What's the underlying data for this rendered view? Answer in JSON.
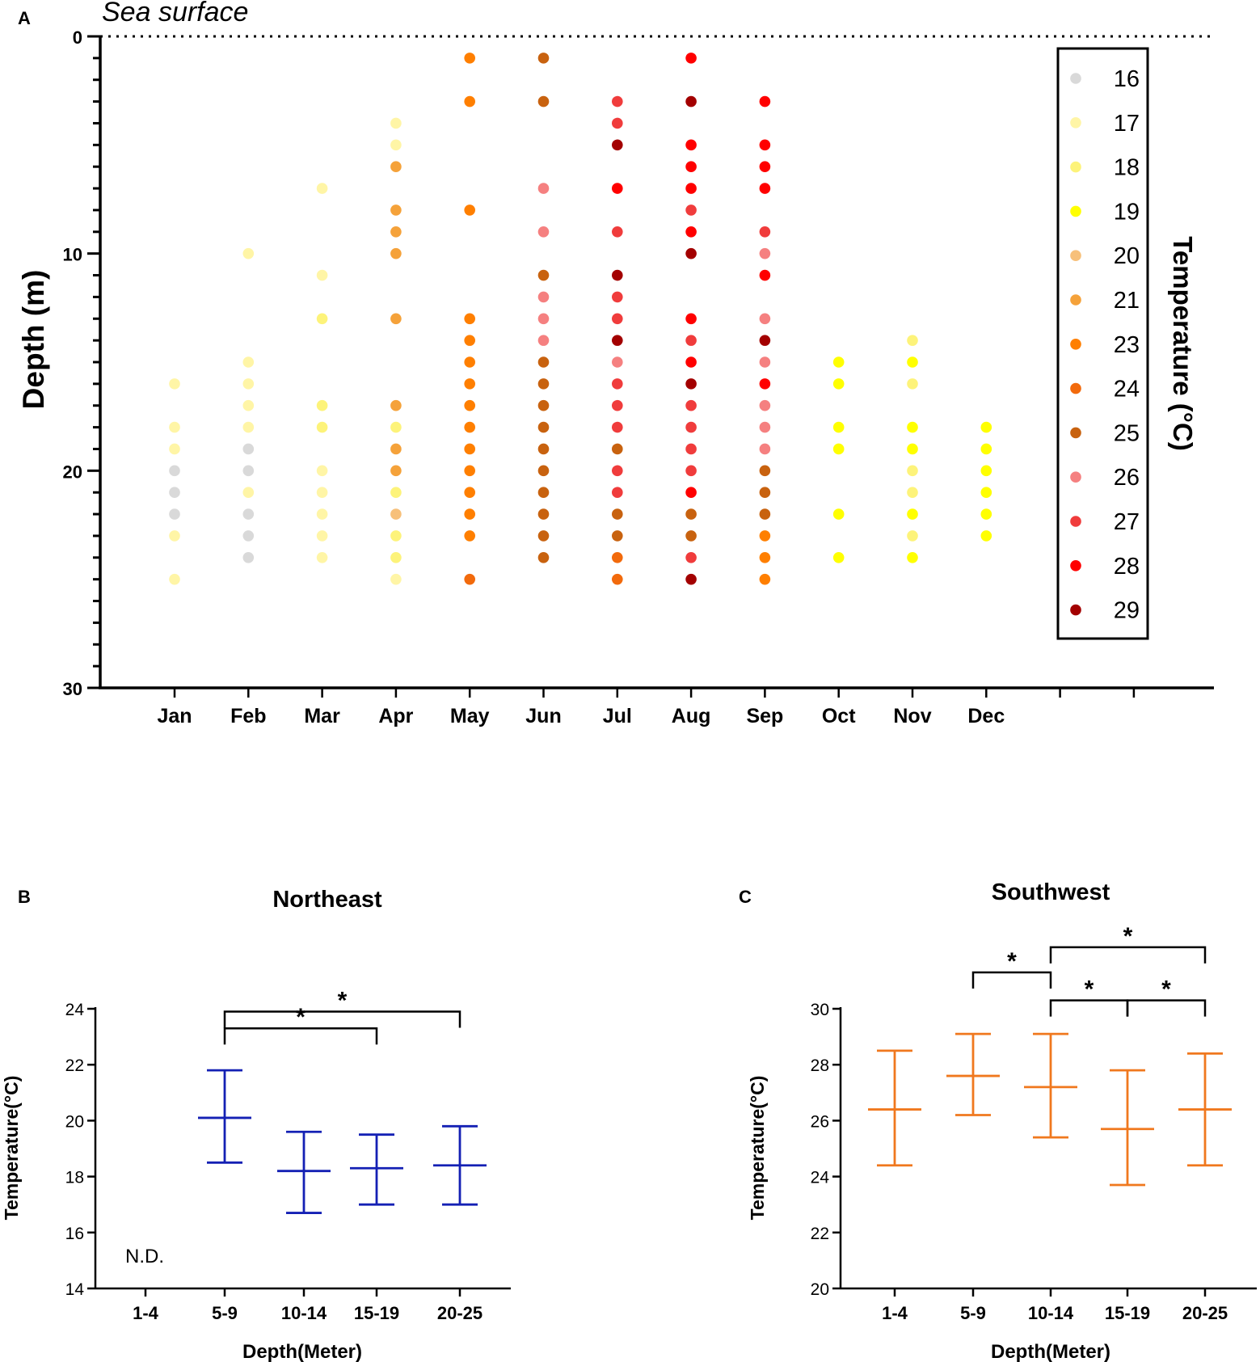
{
  "chart_data": [
    {
      "panel": "A",
      "type": "scatter",
      "annotation": "Sea surface",
      "ylabel": "Depth (m)",
      "ylim": [
        0,
        30
      ],
      "yticks": [
        0,
        10,
        20,
        30
      ],
      "y_inverted": true,
      "categories": [
        "Jan",
        "Feb",
        "Mar",
        "Apr",
        "May",
        "Jun",
        "Jul",
        "Aug",
        "Sep",
        "Oct",
        "Nov",
        "Dec"
      ],
      "legend_title": "Temperature (°C)",
      "legend": [
        {
          "temp": "16",
          "color": "#d9d9d9"
        },
        {
          "temp": "17",
          "color": "#fff5a6"
        },
        {
          "temp": "18",
          "color": "#fdf37a"
        },
        {
          "temp": "19",
          "color": "#ffff00"
        },
        {
          "temp": "20",
          "color": "#f7c07a"
        },
        {
          "temp": "21",
          "color": "#f5a23a"
        },
        {
          "temp": "23",
          "color": "#ff7f00"
        },
        {
          "temp": "24",
          "color": "#f26a0c"
        },
        {
          "temp": "25",
          "color": "#c8620f"
        },
        {
          "temp": "26",
          "color": "#f58080"
        },
        {
          "temp": "27",
          "color": "#f03c3c"
        },
        {
          "temp": "28",
          "color": "#ff0000"
        },
        {
          "temp": "29",
          "color": "#a30000"
        }
      ],
      "points": [
        {
          "month": "Jan",
          "depth": 16,
          "temp": "17"
        },
        {
          "month": "Jan",
          "depth": 18,
          "temp": "17"
        },
        {
          "month": "Jan",
          "depth": 19,
          "temp": "17"
        },
        {
          "month": "Jan",
          "depth": 20,
          "temp": "16"
        },
        {
          "month": "Jan",
          "depth": 21,
          "temp": "16"
        },
        {
          "month": "Jan",
          "depth": 22,
          "temp": "16"
        },
        {
          "month": "Jan",
          "depth": 23,
          "temp": "17"
        },
        {
          "month": "Jan",
          "depth": 25,
          "temp": "17"
        },
        {
          "month": "Feb",
          "depth": 10,
          "temp": "17"
        },
        {
          "month": "Feb",
          "depth": 15,
          "temp": "17"
        },
        {
          "month": "Feb",
          "depth": 16,
          "temp": "17"
        },
        {
          "month": "Feb",
          "depth": 17,
          "temp": "17"
        },
        {
          "month": "Feb",
          "depth": 18,
          "temp": "17"
        },
        {
          "month": "Feb",
          "depth": 19,
          "temp": "16"
        },
        {
          "month": "Feb",
          "depth": 20,
          "temp": "16"
        },
        {
          "month": "Feb",
          "depth": 21,
          "temp": "17"
        },
        {
          "month": "Feb",
          "depth": 22,
          "temp": "16"
        },
        {
          "month": "Feb",
          "depth": 23,
          "temp": "16"
        },
        {
          "month": "Feb",
          "depth": 24,
          "temp": "16"
        },
        {
          "month": "Mar",
          "depth": 7,
          "temp": "17"
        },
        {
          "month": "Mar",
          "depth": 11,
          "temp": "17"
        },
        {
          "month": "Mar",
          "depth": 13,
          "temp": "18"
        },
        {
          "month": "Mar",
          "depth": 17,
          "temp": "18"
        },
        {
          "month": "Mar",
          "depth": 18,
          "temp": "18"
        },
        {
          "month": "Mar",
          "depth": 20,
          "temp": "17"
        },
        {
          "month": "Mar",
          "depth": 21,
          "temp": "17"
        },
        {
          "month": "Mar",
          "depth": 22,
          "temp": "17"
        },
        {
          "month": "Mar",
          "depth": 23,
          "temp": "17"
        },
        {
          "month": "Mar",
          "depth": 24,
          "temp": "17"
        },
        {
          "month": "Apr",
          "depth": 4,
          "temp": "17"
        },
        {
          "month": "Apr",
          "depth": 5,
          "temp": "17"
        },
        {
          "month": "Apr",
          "depth": 6,
          "temp": "21"
        },
        {
          "month": "Apr",
          "depth": 8,
          "temp": "21"
        },
        {
          "month": "Apr",
          "depth": 9,
          "temp": "21"
        },
        {
          "month": "Apr",
          "depth": 10,
          "temp": "21"
        },
        {
          "month": "Apr",
          "depth": 13,
          "temp": "21"
        },
        {
          "month": "Apr",
          "depth": 17,
          "temp": "21"
        },
        {
          "month": "Apr",
          "depth": 18,
          "temp": "18"
        },
        {
          "month": "Apr",
          "depth": 19,
          "temp": "21"
        },
        {
          "month": "Apr",
          "depth": 20,
          "temp": "21"
        },
        {
          "month": "Apr",
          "depth": 21,
          "temp": "18"
        },
        {
          "month": "Apr",
          "depth": 22,
          "temp": "20"
        },
        {
          "month": "Apr",
          "depth": 23,
          "temp": "18"
        },
        {
          "month": "Apr",
          "depth": 24,
          "temp": "18"
        },
        {
          "month": "Apr",
          "depth": 25,
          "temp": "17"
        },
        {
          "month": "May",
          "depth": 1,
          "temp": "23"
        },
        {
          "month": "May",
          "depth": 3,
          "temp": "23"
        },
        {
          "month": "May",
          "depth": 8,
          "temp": "23"
        },
        {
          "month": "May",
          "depth": 13,
          "temp": "23"
        },
        {
          "month": "May",
          "depth": 14,
          "temp": "23"
        },
        {
          "month": "May",
          "depth": 15,
          "temp": "23"
        },
        {
          "month": "May",
          "depth": 16,
          "temp": "23"
        },
        {
          "month": "May",
          "depth": 17,
          "temp": "23"
        },
        {
          "month": "May",
          "depth": 18,
          "temp": "23"
        },
        {
          "month": "May",
          "depth": 19,
          "temp": "23"
        },
        {
          "month": "May",
          "depth": 20,
          "temp": "23"
        },
        {
          "month": "May",
          "depth": 21,
          "temp": "23"
        },
        {
          "month": "May",
          "depth": 22,
          "temp": "23"
        },
        {
          "month": "May",
          "depth": 23,
          "temp": "23"
        },
        {
          "month": "May",
          "depth": 25,
          "temp": "24"
        },
        {
          "month": "Jun",
          "depth": 1,
          "temp": "25"
        },
        {
          "month": "Jun",
          "depth": 3,
          "temp": "25"
        },
        {
          "month": "Jun",
          "depth": 7,
          "temp": "26"
        },
        {
          "month": "Jun",
          "depth": 9,
          "temp": "26"
        },
        {
          "month": "Jun",
          "depth": 11,
          "temp": "25"
        },
        {
          "month": "Jun",
          "depth": 12,
          "temp": "26"
        },
        {
          "month": "Jun",
          "depth": 13,
          "temp": "26"
        },
        {
          "month": "Jun",
          "depth": 14,
          "temp": "26"
        },
        {
          "month": "Jun",
          "depth": 15,
          "temp": "25"
        },
        {
          "month": "Jun",
          "depth": 16,
          "temp": "25"
        },
        {
          "month": "Jun",
          "depth": 17,
          "temp": "25"
        },
        {
          "month": "Jun",
          "depth": 18,
          "temp": "25"
        },
        {
          "month": "Jun",
          "depth": 19,
          "temp": "25"
        },
        {
          "month": "Jun",
          "depth": 20,
          "temp": "25"
        },
        {
          "month": "Jun",
          "depth": 21,
          "temp": "25"
        },
        {
          "month": "Jun",
          "depth": 22,
          "temp": "25"
        },
        {
          "month": "Jun",
          "depth": 23,
          "temp": "25"
        },
        {
          "month": "Jun",
          "depth": 24,
          "temp": "25"
        },
        {
          "month": "Jul",
          "depth": 3,
          "temp": "27"
        },
        {
          "month": "Jul",
          "depth": 4,
          "temp": "27"
        },
        {
          "month": "Jul",
          "depth": 5,
          "temp": "29"
        },
        {
          "month": "Jul",
          "depth": 7,
          "temp": "28"
        },
        {
          "month": "Jul",
          "depth": 9,
          "temp": "27"
        },
        {
          "month": "Jul",
          "depth": 11,
          "temp": "29"
        },
        {
          "month": "Jul",
          "depth": 12,
          "temp": "27"
        },
        {
          "month": "Jul",
          "depth": 13,
          "temp": "27"
        },
        {
          "month": "Jul",
          "depth": 14,
          "temp": "29"
        },
        {
          "month": "Jul",
          "depth": 15,
          "temp": "26"
        },
        {
          "month": "Jul",
          "depth": 16,
          "temp": "27"
        },
        {
          "month": "Jul",
          "depth": 17,
          "temp": "27"
        },
        {
          "month": "Jul",
          "depth": 18,
          "temp": "27"
        },
        {
          "month": "Jul",
          "depth": 19,
          "temp": "25"
        },
        {
          "month": "Jul",
          "depth": 20,
          "temp": "27"
        },
        {
          "month": "Jul",
          "depth": 21,
          "temp": "27"
        },
        {
          "month": "Jul",
          "depth": 22,
          "temp": "25"
        },
        {
          "month": "Jul",
          "depth": 23,
          "temp": "25"
        },
        {
          "month": "Jul",
          "depth": 24,
          "temp": "24"
        },
        {
          "month": "Jul",
          "depth": 25,
          "temp": "24"
        },
        {
          "month": "Aug",
          "depth": 1,
          "temp": "28"
        },
        {
          "month": "Aug",
          "depth": 3,
          "temp": "29"
        },
        {
          "month": "Aug",
          "depth": 5,
          "temp": "28"
        },
        {
          "month": "Aug",
          "depth": 6,
          "temp": "28"
        },
        {
          "month": "Aug",
          "depth": 7,
          "temp": "28"
        },
        {
          "month": "Aug",
          "depth": 8,
          "temp": "27"
        },
        {
          "month": "Aug",
          "depth": 9,
          "temp": "28"
        },
        {
          "month": "Aug",
          "depth": 10,
          "temp": "29"
        },
        {
          "month": "Aug",
          "depth": 13,
          "temp": "28"
        },
        {
          "month": "Aug",
          "depth": 14,
          "temp": "27"
        },
        {
          "month": "Aug",
          "depth": 15,
          "temp": "28"
        },
        {
          "month": "Aug",
          "depth": 16,
          "temp": "29"
        },
        {
          "month": "Aug",
          "depth": 17,
          "temp": "27"
        },
        {
          "month": "Aug",
          "depth": 18,
          "temp": "27"
        },
        {
          "month": "Aug",
          "depth": 19,
          "temp": "27"
        },
        {
          "month": "Aug",
          "depth": 20,
          "temp": "27"
        },
        {
          "month": "Aug",
          "depth": 21,
          "temp": "28"
        },
        {
          "month": "Aug",
          "depth": 22,
          "temp": "25"
        },
        {
          "month": "Aug",
          "depth": 23,
          "temp": "25"
        },
        {
          "month": "Aug",
          "depth": 24,
          "temp": "27"
        },
        {
          "month": "Aug",
          "depth": 25,
          "temp": "29"
        },
        {
          "month": "Sep",
          "depth": 3,
          "temp": "28"
        },
        {
          "month": "Sep",
          "depth": 5,
          "temp": "28"
        },
        {
          "month": "Sep",
          "depth": 6,
          "temp": "28"
        },
        {
          "month": "Sep",
          "depth": 7,
          "temp": "28"
        },
        {
          "month": "Sep",
          "depth": 9,
          "temp": "27"
        },
        {
          "month": "Sep",
          "depth": 10,
          "temp": "26"
        },
        {
          "month": "Sep",
          "depth": 11,
          "temp": "28"
        },
        {
          "month": "Sep",
          "depth": 13,
          "temp": "26"
        },
        {
          "month": "Sep",
          "depth": 14,
          "temp": "29"
        },
        {
          "month": "Sep",
          "depth": 15,
          "temp": "26"
        },
        {
          "month": "Sep",
          "depth": 16,
          "temp": "28"
        },
        {
          "month": "Sep",
          "depth": 17,
          "temp": "26"
        },
        {
          "month": "Sep",
          "depth": 18,
          "temp": "26"
        },
        {
          "month": "Sep",
          "depth": 19,
          "temp": "26"
        },
        {
          "month": "Sep",
          "depth": 20,
          "temp": "25"
        },
        {
          "month": "Sep",
          "depth": 21,
          "temp": "25"
        },
        {
          "month": "Sep",
          "depth": 22,
          "temp": "25"
        },
        {
          "month": "Sep",
          "depth": 23,
          "temp": "23"
        },
        {
          "month": "Sep",
          "depth": 24,
          "temp": "23"
        },
        {
          "month": "Sep",
          "depth": 25,
          "temp": "23"
        },
        {
          "month": "Oct",
          "depth": 15,
          "temp": "19"
        },
        {
          "month": "Oct",
          "depth": 16,
          "temp": "19"
        },
        {
          "month": "Oct",
          "depth": 18,
          "temp": "19"
        },
        {
          "month": "Oct",
          "depth": 19,
          "temp": "19"
        },
        {
          "month": "Oct",
          "depth": 22,
          "temp": "19"
        },
        {
          "month": "Oct",
          "depth": 24,
          "temp": "19"
        },
        {
          "month": "Nov",
          "depth": 14,
          "temp": "18"
        },
        {
          "month": "Nov",
          "depth": 15,
          "temp": "19"
        },
        {
          "month": "Nov",
          "depth": 16,
          "temp": "18"
        },
        {
          "month": "Nov",
          "depth": 18,
          "temp": "19"
        },
        {
          "month": "Nov",
          "depth": 19,
          "temp": "19"
        },
        {
          "month": "Nov",
          "depth": 20,
          "temp": "18"
        },
        {
          "month": "Nov",
          "depth": 21,
          "temp": "18"
        },
        {
          "month": "Nov",
          "depth": 22,
          "temp": "19"
        },
        {
          "month": "Nov",
          "depth": 23,
          "temp": "18"
        },
        {
          "month": "Nov",
          "depth": 24,
          "temp": "19"
        },
        {
          "month": "Dec",
          "depth": 18,
          "temp": "19"
        },
        {
          "month": "Dec",
          "depth": 19,
          "temp": "19"
        },
        {
          "month": "Dec",
          "depth": 20,
          "temp": "19"
        },
        {
          "month": "Dec",
          "depth": 21,
          "temp": "19"
        },
        {
          "month": "Dec",
          "depth": 22,
          "temp": "19"
        },
        {
          "month": "Dec",
          "depth": 23,
          "temp": "19"
        }
      ]
    },
    {
      "panel": "B",
      "type": "errorbar",
      "title": "Northeast",
      "xlabel": "Depth(Meter)",
      "ylabel": "Temperature(°C)",
      "ylim": [
        14,
        24
      ],
      "yticks": [
        14,
        16,
        18,
        20,
        22,
        24
      ],
      "categories": [
        "1-4",
        "5-9",
        "10-14",
        "15-19",
        "20-25"
      ],
      "color": "#1420b4",
      "series": [
        {
          "category": "1-4",
          "mean": null,
          "low": null,
          "high": null
        },
        {
          "category": "5-9",
          "mean": 20.1,
          "low": 18.5,
          "high": 21.8
        },
        {
          "category": "10-14",
          "mean": 18.2,
          "low": 16.7,
          "high": 19.6
        },
        {
          "category": "15-19",
          "mean": 18.3,
          "low": 17.0,
          "high": 19.5
        },
        {
          "category": "20-25",
          "mean": 18.4,
          "low": 17.0,
          "high": 19.8
        }
      ],
      "note": "N.D.",
      "significance": [
        {
          "from": "5-9",
          "to": "15-19",
          "label": "*",
          "level": 23.3
        },
        {
          "from": "5-9",
          "to": "20-25",
          "label": "*",
          "level": 23.9
        }
      ]
    },
    {
      "panel": "C",
      "type": "errorbar",
      "title": "Southwest",
      "xlabel": "Depth(Meter)",
      "ylabel": "Temperature(°C)",
      "ylim": [
        20,
        30
      ],
      "yticks": [
        20,
        22,
        24,
        26,
        28,
        30
      ],
      "categories": [
        "1-4",
        "5-9",
        "10-14",
        "15-19",
        "20-25"
      ],
      "color": "#f0781e",
      "series": [
        {
          "category": "1-4",
          "mean": 26.4,
          "low": 24.4,
          "high": 28.5
        },
        {
          "category": "5-9",
          "mean": 27.6,
          "low": 26.2,
          "high": 29.1
        },
        {
          "category": "10-14",
          "mean": 27.2,
          "low": 25.4,
          "high": 29.1
        },
        {
          "category": "15-19",
          "mean": 25.7,
          "low": 23.7,
          "high": 27.8
        },
        {
          "category": "20-25",
          "mean": 26.4,
          "low": 24.4,
          "high": 28.4
        }
      ],
      "significance": [
        {
          "from": "5-9",
          "to": "10-14",
          "label": "*",
          "level": 31.3
        },
        {
          "from": "10-14",
          "to": "20-25",
          "label": "*",
          "level": 32.2
        },
        {
          "from": "10-14",
          "to": "15-19",
          "label": "*",
          "level": 30.3
        },
        {
          "from": "15-19",
          "to": "20-25",
          "label": "*",
          "level": 30.3
        }
      ]
    }
  ]
}
